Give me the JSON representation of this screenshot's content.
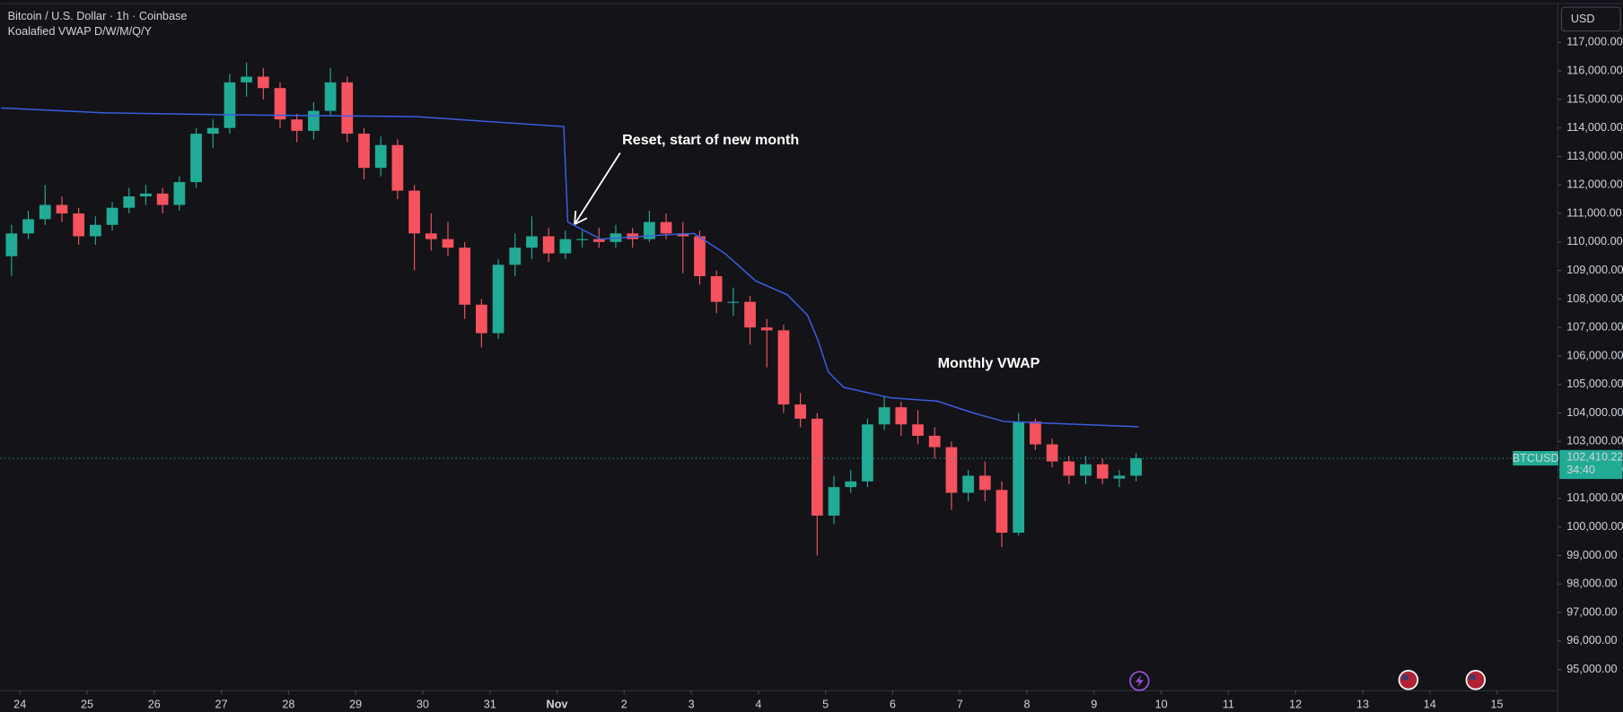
{
  "chart_data": {
    "type": "candlestick",
    "title": "Bitcoin / U.S. Dollar · 1h · Coinbase",
    "symbol": "BTCUSD",
    "currency": "USD",
    "countdown": "34:40",
    "up_color": "#22ab94",
    "down_color": "#f7525f",
    "grid": false,
    "xlim": [
      -0.29,
      22.9
    ],
    "xticks": [
      {
        "value": 0,
        "label": "24"
      },
      {
        "value": 1,
        "label": "25"
      },
      {
        "value": 2,
        "label": "26"
      },
      {
        "value": 3,
        "label": "27"
      },
      {
        "value": 4,
        "label": "28"
      },
      {
        "value": 5,
        "label": "29"
      },
      {
        "value": 6,
        "label": "30"
      },
      {
        "value": 7,
        "label": "31"
      },
      {
        "value": 8,
        "label": "Nov"
      },
      {
        "value": 9,
        "label": "2"
      },
      {
        "value": 10,
        "label": "3"
      },
      {
        "value": 11,
        "label": "4"
      },
      {
        "value": 12,
        "label": "5"
      },
      {
        "value": 13,
        "label": "6"
      },
      {
        "value": 14,
        "label": "7"
      },
      {
        "value": 15,
        "label": "8"
      },
      {
        "value": 16,
        "label": "9"
      },
      {
        "value": 17,
        "label": "10"
      },
      {
        "value": 18,
        "label": "11"
      },
      {
        "value": 19,
        "label": "12"
      },
      {
        "value": 20,
        "label": "13"
      },
      {
        "value": 21,
        "label": "14"
      },
      {
        "value": 22,
        "label": "15"
      }
    ],
    "ylim": [
      94270,
      118490
    ],
    "yticks": [
      {
        "value": 95000,
        "label": "95,000.00"
      },
      {
        "value": 96000,
        "label": "96,000.00"
      },
      {
        "value": 97000,
        "label": "97,000.00"
      },
      {
        "value": 98000,
        "label": "98,000.00"
      },
      {
        "value": 99000,
        "label": "99,000.00"
      },
      {
        "value": 100000,
        "label": "100,000.00"
      },
      {
        "value": 101000,
        "label": "101,000.00"
      },
      {
        "value": 102000,
        "label": "102,000.00"
      },
      {
        "value": 103000,
        "label": "103,000.00"
      },
      {
        "value": 104000,
        "label": "104,000.00"
      },
      {
        "value": 105000,
        "label": "105,000.00"
      },
      {
        "value": 106000,
        "label": "106,000.00"
      },
      {
        "value": 107000,
        "label": "107,000.00"
      },
      {
        "value": 108000,
        "label": "108,000.00"
      },
      {
        "value": 109000,
        "label": "109,000.00"
      },
      {
        "value": 110000,
        "label": "110,000.00"
      },
      {
        "value": 111000,
        "label": "111,000.00"
      },
      {
        "value": 112000,
        "label": "112,000.00"
      },
      {
        "value": 113000,
        "label": "113,000.00"
      },
      {
        "value": 114000,
        "label": "114,000.00"
      },
      {
        "value": 115000,
        "label": "115,000.00"
      },
      {
        "value": 116000,
        "label": "116,000.00"
      },
      {
        "value": 117000,
        "label": "117,000.00"
      }
    ],
    "last_price": {
      "value": 102410.22,
      "label": "102,410.22"
    },
    "x": [
      -0.25,
      0,
      0.25,
      0.5,
      0.75,
      1,
      1.25,
      1.5,
      1.75,
      2,
      2.25,
      2.5,
      2.75,
      3,
      3.25,
      3.5,
      3.75,
      4,
      4.25,
      4.5,
      4.75,
      5,
      5.25,
      5.5,
      5.75,
      6,
      6.25,
      6.5,
      6.75,
      7,
      7.25,
      7.5,
      7.75,
      8,
      8.25,
      8.5,
      8.75,
      9,
      9.25,
      9.5,
      9.75,
      10,
      10.25,
      10.5,
      10.75,
      11,
      11.25,
      11.5,
      11.75,
      12,
      12.25,
      12.5,
      12.75,
      13,
      13.25,
      13.5,
      13.75,
      14,
      14.25,
      14.5,
      14.75,
      15,
      15.25,
      15.5,
      15.75,
      16,
      16.25,
      16.5
    ],
    "open": [
      109500,
      110300,
      110800,
      111300,
      111000,
      110200,
      110600,
      111200,
      111600,
      111700,
      111300,
      112100,
      113800,
      114000,
      115600,
      115800,
      115400,
      114300,
      113900,
      114600,
      115600,
      113800,
      112600,
      113400,
      111800,
      110300,
      110100,
      109800,
      107800,
      106800,
      109200,
      109800,
      110200,
      109600,
      110100,
      110100,
      110000,
      110300,
      110100,
      110700,
      110300,
      110200,
      108800,
      107900,
      107900,
      107000,
      106900,
      104300,
      103800,
      100400,
      101400,
      101600,
      103600,
      104200,
      103600,
      103200,
      102800,
      101200,
      101800,
      101300,
      99800,
      103700,
      102900,
      102300,
      101800,
      102200,
      101700,
      101800
    ],
    "high": [
      110600,
      111100,
      112000,
      111600,
      111200,
      110900,
      111400,
      111900,
      112000,
      111900,
      112300,
      114000,
      114300,
      115900,
      116300,
      116100,
      115600,
      114500,
      114900,
      116100,
      115800,
      114000,
      113700,
      113600,
      112000,
      111000,
      110700,
      110000,
      108000,
      109400,
      110300,
      110900,
      110500,
      110400,
      110400,
      110500,
      110600,
      110500,
      111100,
      111000,
      110700,
      110400,
      109000,
      108400,
      108100,
      107300,
      107100,
      104700,
      104000,
      101800,
      102000,
      103800,
      104600,
      104400,
      104100,
      103500,
      103000,
      102000,
      102300,
      101600,
      104000,
      103800,
      103100,
      102500,
      102500,
      102400,
      102000,
      102600
    ],
    "low": [
      108800,
      110100,
      110600,
      110700,
      109900,
      109900,
      110400,
      111000,
      111300,
      111000,
      111100,
      111900,
      113300,
      113800,
      115100,
      115000,
      114000,
      113500,
      113600,
      114400,
      113500,
      112200,
      112300,
      111500,
      109000,
      109700,
      109500,
      107300,
      106300,
      106600,
      108800,
      109400,
      109300,
      109400,
      109800,
      109800,
      109800,
      109800,
      110000,
      110100,
      108900,
      108500,
      107500,
      107400,
      106400,
      105600,
      104000,
      103500,
      99000,
      100100,
      101200,
      101400,
      103400,
      103200,
      102900,
      102400,
      100600,
      100900,
      100900,
      99300,
      99700,
      102700,
      102100,
      101500,
      101500,
      101500,
      101400,
      101600
    ],
    "close": [
      110300,
      110800,
      111300,
      111000,
      110200,
      110600,
      111200,
      111600,
      111700,
      111300,
      112100,
      113800,
      114000,
      115600,
      115800,
      115400,
      114300,
      113900,
      114600,
      115600,
      113800,
      112600,
      113400,
      111800,
      110300,
      110100,
      109800,
      107800,
      106800,
      109200,
      109800,
      110200,
      109600,
      110100,
      110100,
      110000,
      110300,
      110100,
      110700,
      110300,
      110200,
      108800,
      107900,
      107900,
      107000,
      106900,
      104300,
      103800,
      100400,
      101400,
      101600,
      103600,
      104200,
      103600,
      103200,
      102800,
      101200,
      101800,
      101300,
      99800,
      103700,
      102900,
      102300,
      101800,
      102200,
      101700,
      101800,
      102410.22
    ],
    "series": [
      {
        "name": "Koalafied VWAP D/W/M/Q/Y",
        "type": "line",
        "color": "#3a5fe0",
        "x": [
          -0.28,
          1.26,
          3.1,
          5.88,
          8.1,
          8.16,
          8.65,
          9.6,
          10.04,
          10.5,
          10.96,
          11.43,
          11.73,
          11.89,
          12.04,
          12.27,
          12.97,
          13.66,
          14.2,
          14.66,
          16.66
        ],
        "values": [
          114700,
          114530,
          114460,
          114400,
          114050,
          110700,
          110100,
          110250,
          110300,
          109600,
          108630,
          108150,
          107430,
          106530,
          105440,
          104900,
          104530,
          104420,
          104000,
          103700,
          103520
        ]
      }
    ],
    "annotations": [
      "Reset, start of new month",
      "Monthly VWAP"
    ]
  }
}
